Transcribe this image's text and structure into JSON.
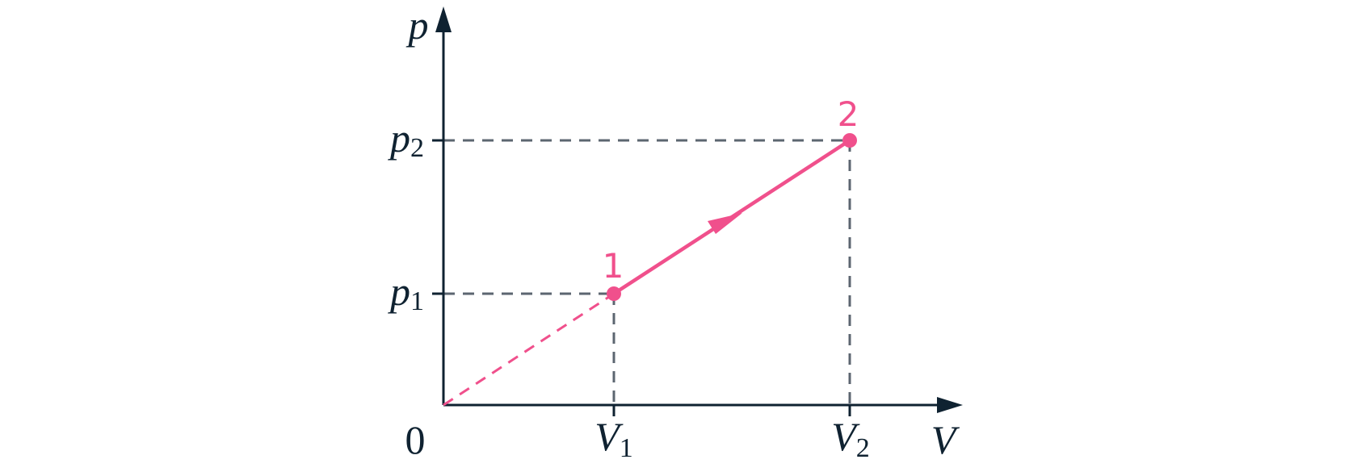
{
  "axes": {
    "y": {
      "label": "p"
    },
    "x": {
      "label": "V"
    },
    "origin": "0"
  },
  "ticks": {
    "p1": {
      "symbol": "p",
      "subscript": "1"
    },
    "p2": {
      "symbol": "p",
      "subscript": "2"
    },
    "V1": {
      "symbol": "V",
      "subscript": "1"
    },
    "V2": {
      "symbol": "V",
      "subscript": "2"
    }
  },
  "points": [
    {
      "label": "1"
    },
    {
      "label": "2"
    }
  ]
}
